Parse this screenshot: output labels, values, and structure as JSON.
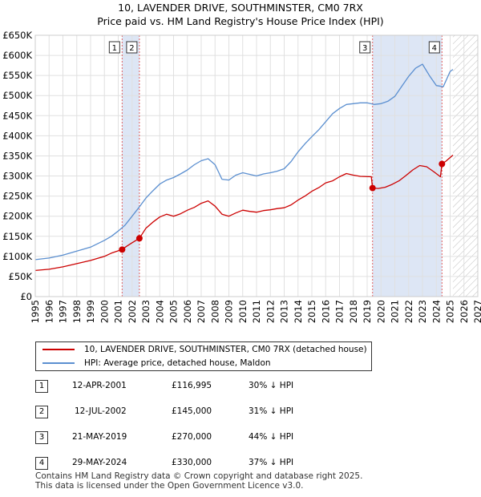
{
  "header": {
    "title_line1": "10, LAVENDER DRIVE, SOUTHMINSTER, CM0 7RX",
    "title_line2": "Price paid vs. HM Land Registry's House Price Index (HPI)"
  },
  "colors": {
    "price_line": "#cc0000",
    "hpi_line": "#5b8fd0",
    "shade": "#dde6f5",
    "marker_line": "#e06060",
    "grid": "#e0e0e0"
  },
  "chart_data": {
    "type": "line",
    "title": "10, LAVENDER DRIVE, SOUTHMINSTER, CM0 7RX",
    "subtitle": "Price paid vs. HM Land Registry's House Price Index (HPI)",
    "xlim": [
      1995,
      2027
    ],
    "ylim": [
      0,
      650000
    ],
    "x_ticks": [
      1995,
      1996,
      1997,
      1998,
      1999,
      2000,
      2001,
      2002,
      2003,
      2004,
      2005,
      2006,
      2007,
      2008,
      2009,
      2010,
      2011,
      2012,
      2013,
      2014,
      2015,
      2016,
      2017,
      2018,
      2019,
      2020,
      2021,
      2022,
      2023,
      2024,
      2025,
      2026,
      2027
    ],
    "y_ticks": [
      0,
      50000,
      100000,
      150000,
      200000,
      250000,
      300000,
      350000,
      400000,
      450000,
      500000,
      550000,
      600000,
      650000
    ],
    "y_tick_labels": [
      "£0",
      "£50K",
      "£100K",
      "£150K",
      "£200K",
      "£250K",
      "£300K",
      "£350K",
      "£400K",
      "£450K",
      "£500K",
      "£550K",
      "£600K",
      "£650K"
    ],
    "forecast_from": 2025.2,
    "shaded_spans": [
      [
        2001.28,
        2002.53
      ],
      [
        2019.39,
        2024.41
      ]
    ],
    "series": [
      {
        "name": "10, LAVENDER DRIVE, SOUTHMINSTER, CM0 7RX (detached house)",
        "x": [
          1995,
          1996,
          1997,
          1998,
          1999,
          2000,
          2000.5,
          2001.28,
          2001.6,
          2002,
          2002.53,
          2003,
          2003.5,
          2004,
          2004.5,
          2005,
          2005.5,
          2006,
          2006.5,
          2007,
          2007.5,
          2008,
          2008.5,
          2009,
          2009.5,
          2010,
          2010.5,
          2011,
          2011.5,
          2012,
          2012.5,
          2013,
          2013.5,
          2014,
          2014.5,
          2015,
          2015.5,
          2016,
          2016.5,
          2017,
          2017.5,
          2018,
          2018.5,
          2019.3,
          2019.39,
          2019.8,
          2020.3,
          2020.8,
          2021.3,
          2021.8,
          2022.3,
          2022.8,
          2023.3,
          2023.8,
          2024.3,
          2024.41,
          2024.7,
          2025.0,
          2025.2
        ],
        "y": [
          65000,
          68000,
          74000,
          82000,
          90000,
          100000,
          108000,
          116995,
          125000,
          134000,
          145000,
          170000,
          185000,
          198000,
          205000,
          200000,
          206000,
          215000,
          222000,
          232000,
          238000,
          225000,
          205000,
          200000,
          208000,
          215000,
          212000,
          210000,
          214000,
          216000,
          219000,
          221000,
          228000,
          240000,
          250000,
          262000,
          271000,
          283000,
          288000,
          298000,
          306000,
          302000,
          299000,
          298000,
          270000,
          269000,
          272000,
          279000,
          288000,
          301000,
          315000,
          326000,
          323000,
          311000,
          298000,
          330000,
          337000,
          346000,
          352000
        ]
      },
      {
        "name": "HPI: Average price, detached house, Maldon",
        "x": [
          1995,
          1996,
          1997,
          1998,
          1999,
          2000,
          2000.5,
          2001,
          2001.5,
          2002,
          2002.5,
          2003,
          2003.5,
          2004,
          2004.5,
          2005,
          2005.5,
          2006,
          2006.5,
          2007,
          2007.5,
          2008,
          2008.5,
          2009,
          2009.5,
          2010,
          2010.5,
          2011,
          2011.5,
          2012,
          2012.5,
          2013,
          2013.5,
          2014,
          2014.5,
          2015,
          2015.5,
          2016,
          2016.5,
          2017,
          2017.5,
          2018,
          2018.5,
          2019,
          2019.5,
          2020,
          2020.5,
          2021,
          2021.5,
          2022,
          2022.5,
          2023,
          2023.5,
          2024,
          2024.5,
          2025,
          2025.2
        ],
        "y": [
          92000,
          96000,
          103000,
          113000,
          123000,
          140000,
          150000,
          163000,
          178000,
          200000,
          222000,
          245000,
          263000,
          280000,
          290000,
          296000,
          305000,
          315000,
          328000,
          338000,
          343000,
          328000,
          292000,
          290000,
          302000,
          308000,
          304000,
          300000,
          305000,
          308000,
          312000,
          318000,
          336000,
          360000,
          380000,
          398000,
          415000,
          435000,
          455000,
          468000,
          478000,
          480000,
          482000,
          482000,
          478000,
          480000,
          486000,
          498000,
          523000,
          548000,
          568000,
          578000,
          550000,
          525000,
          522000,
          560000,
          565000
        ]
      }
    ],
    "sales": [
      {
        "num": "1",
        "x": 2001.28,
        "y": 116995
      },
      {
        "num": "2",
        "x": 2002.53,
        "y": 145000
      },
      {
        "num": "3",
        "x": 2019.39,
        "y": 270000
      },
      {
        "num": "4",
        "x": 2024.41,
        "y": 330000
      }
    ]
  },
  "legend": {
    "price_label": "10, LAVENDER DRIVE, SOUTHMINSTER, CM0 7RX (detached house)",
    "hpi_label": "HPI: Average price, detached house, Maldon"
  },
  "sales_table": [
    {
      "num": "1",
      "date": "12-APR-2001",
      "price": "£116,995",
      "hpi": "30% ↓ HPI"
    },
    {
      "num": "2",
      "date": "12-JUL-2002",
      "price": "£145,000",
      "hpi": "31% ↓ HPI"
    },
    {
      "num": "3",
      "date": "21-MAY-2019",
      "price": "£270,000",
      "hpi": "44% ↓ HPI"
    },
    {
      "num": "4",
      "date": "29-MAY-2024",
      "price": "£330,000",
      "hpi": "37% ↓ HPI"
    }
  ],
  "footer": {
    "line1": "Contains HM Land Registry data © Crown copyright and database right 2025.",
    "line2": "This data is licensed under the Open Government Licence v3.0."
  }
}
